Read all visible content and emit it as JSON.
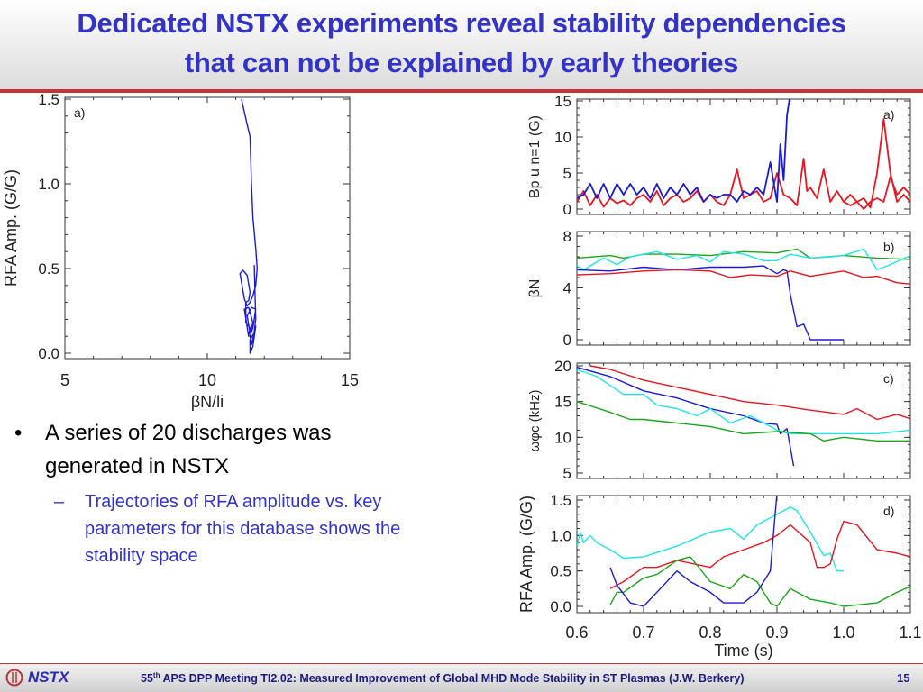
{
  "slide": {
    "title_line1": "Dedicated NSTX experiments reveal stability dependencies",
    "title_line2": "that can not be explained by early theories",
    "bullet": "A series of 20 discharges was generated in NSTX",
    "sub_bullet": "Trajectories of RFA amplitude vs. key parameters for this database shows the stability space",
    "bullet_marker": "•",
    "sub_bullet_marker": "–"
  },
  "footer": {
    "logo_text": "NSTX",
    "meeting_num": "55",
    "meeting_sup": "th",
    "meeting_text": " APS DPP Meeting TI2.02: Measured Improvement of Global MHD Mode Stability in ST Plasmas (J.W. Berkery)",
    "page_number": "15"
  },
  "colors": {
    "title": "#3333c8",
    "accent_rule": "#c0343a",
    "series_blue": "#1a1ad6",
    "series_red": "#e8141e",
    "series_green": "#1aa51a",
    "series_cyan": "#1ee6e6"
  },
  "chart_data": [
    {
      "id": "left",
      "type": "line",
      "panel_label": "a)",
      "xlabel": "βN/li",
      "ylabel": "RFA Amp. (G/G)",
      "xlim": [
        5,
        15
      ],
      "ylim": [
        0,
        1.5
      ],
      "xticks": [
        "5",
        "10",
        "15"
      ],
      "yticks": [
        "0.0",
        "0.5",
        "1.0",
        "1.5"
      ],
      "series": [
        {
          "name": "trajectory",
          "color": "blue",
          "x": [
            11.2,
            11.4,
            11.5,
            11.55,
            11.6,
            11.7,
            11.75,
            11.7,
            11.6,
            11.5,
            11.4,
            11.3,
            11.15,
            11.25,
            11.4,
            11.5,
            11.45,
            11.35,
            11.35,
            11.5,
            11.45,
            11.3,
            11.45,
            11.6,
            11.5,
            11.4,
            11.55,
            11.7,
            11.6,
            11.5,
            11.55,
            11.65,
            11.5,
            11.5,
            11.6,
            11.7,
            11.7,
            11.6,
            11.6,
            11.7,
            11.65
          ],
          "y": [
            1.5,
            1.35,
            1.28,
            1.0,
            0.8,
            0.62,
            0.5,
            0.4,
            0.34,
            0.3,
            0.28,
            0.32,
            0.47,
            0.49,
            0.46,
            0.36,
            0.31,
            0.3,
            0.18,
            0.15,
            0.1,
            0.26,
            0.27,
            0.18,
            0.12,
            0.22,
            0.27,
            0.26,
            0.15,
            0.1,
            0.05,
            0.12,
            0.08,
            0.0,
            0.04,
            0.16,
            0.16,
            0.08,
            0.06,
            0.2,
            0.52
          ]
        }
      ]
    },
    {
      "id": "right-a",
      "type": "line",
      "panel_label": "a)",
      "ylabel": "Bp u n=1 (G)",
      "xlim": [
        0.6,
        1.1
      ],
      "ylim": [
        0,
        15
      ],
      "yticks": [
        "0",
        "5",
        "10",
        "15"
      ],
      "series": [
        {
          "name": "red",
          "color": "red",
          "x": [
            0.6,
            0.61,
            0.62,
            0.63,
            0.64,
            0.65,
            0.66,
            0.67,
            0.68,
            0.69,
            0.7,
            0.71,
            0.72,
            0.73,
            0.74,
            0.75,
            0.76,
            0.77,
            0.78,
            0.79,
            0.8,
            0.81,
            0.82,
            0.83,
            0.84,
            0.85,
            0.86,
            0.87,
            0.88,
            0.89,
            0.9,
            0.91,
            0.92,
            0.93,
            0.94,
            0.945,
            0.95,
            0.96,
            0.97,
            0.98,
            0.99,
            1.0,
            1.01,
            1.02,
            1.03,
            1.04,
            1.05,
            1.06,
            1.07,
            1.08,
            1.09,
            1.1
          ],
          "y": [
            1,
            2.5,
            0.5,
            2,
            0.3,
            1.5,
            0.8,
            1.2,
            0.5,
            1.5,
            2,
            1,
            2.5,
            0.5,
            1.5,
            2,
            1,
            1.5,
            2.5,
            1,
            2,
            1,
            0.5,
            2,
            5.5,
            1.5,
            2,
            2.5,
            1,
            1.5,
            5,
            2,
            1.5,
            0.5,
            7,
            2.5,
            3,
            1.5,
            5.5,
            1,
            2.5,
            1,
            0.5,
            1,
            1.5,
            0.2,
            5,
            12.5,
            5,
            1,
            2,
            1
          ]
        },
        {
          "name": "red2",
          "color": "red",
          "x": [
            1.0,
            1.01,
            1.02,
            1.03,
            1.04,
            1.05,
            1.06,
            1.07,
            1.08,
            1.09,
            1.1
          ],
          "y": [
            1,
            2,
            1,
            0,
            1,
            1.5,
            1,
            4.5,
            2,
            3,
            2
          ]
        },
        {
          "name": "blue",
          "color": "blue",
          "x": [
            0.6,
            0.61,
            0.62,
            0.63,
            0.64,
            0.65,
            0.66,
            0.67,
            0.68,
            0.69,
            0.7,
            0.71,
            0.72,
            0.73,
            0.74,
            0.75,
            0.76,
            0.77,
            0.78,
            0.79,
            0.8,
            0.81,
            0.82,
            0.83,
            0.84,
            0.85,
            0.86,
            0.87,
            0.88,
            0.89,
            0.9,
            0.905,
            0.91,
            0.915,
            0.92
          ],
          "y": [
            1.5,
            2,
            3.5,
            1.5,
            3.5,
            1.5,
            3.5,
            2,
            3.5,
            2,
            3,
            1.5,
            3.5,
            1.5,
            3,
            2,
            3.5,
            2,
            3,
            1,
            2,
            1.5,
            2,
            2,
            1,
            2.5,
            2,
            3,
            2,
            6.5,
            1,
            9,
            4,
            13,
            16
          ]
        }
      ]
    },
    {
      "id": "right-b",
      "type": "line",
      "panel_label": "b)",
      "ylabel": "βN",
      "xlim": [
        0.6,
        1.1
      ],
      "ylim": [
        0,
        8
      ],
      "yticks": [
        "0",
        "4",
        "8"
      ],
      "series": [
        {
          "name": "green",
          "color": "green",
          "x": [
            0.6,
            0.65,
            0.67,
            0.7,
            0.75,
            0.8,
            0.85,
            0.9,
            0.93,
            0.95,
            1.0,
            1.05,
            1.1
          ],
          "y": [
            6.3,
            6.5,
            6.3,
            6.6,
            6.6,
            6.5,
            6.8,
            6.7,
            7.0,
            6.3,
            6.5,
            6.3,
            6.2
          ]
        },
        {
          "name": "cyan",
          "color": "cyan",
          "x": [
            0.6,
            0.61,
            0.64,
            0.66,
            0.68,
            0.72,
            0.75,
            0.78,
            0.8,
            0.82,
            0.85,
            0.88,
            0.9,
            0.92,
            0.95,
            0.98,
            1.0,
            1.03,
            1.05,
            1.07,
            1.1
          ],
          "y": [
            5.7,
            5.4,
            6.3,
            5.8,
            6.4,
            6.8,
            6.2,
            6.5,
            6.0,
            6.8,
            6.6,
            6.1,
            6.1,
            6.6,
            6.3,
            6.4,
            6.5,
            7.0,
            5.4,
            5.8,
            6.5
          ]
        },
        {
          "name": "blue",
          "color": "blue",
          "x": [
            0.6,
            0.65,
            0.7,
            0.75,
            0.8,
            0.85,
            0.88,
            0.9,
            0.91,
            0.915,
            0.92,
            0.93,
            0.94,
            0.95,
            0.96,
            1.0
          ],
          "y": [
            5.4,
            5.3,
            5.6,
            5.4,
            5.6,
            5.6,
            5.7,
            5.1,
            5.4,
            5.3,
            3.5,
            1.0,
            1.2,
            0.0,
            0.0,
            0.0
          ]
        },
        {
          "name": "red",
          "color": "red",
          "x": [
            0.6,
            0.65,
            0.7,
            0.75,
            0.8,
            0.83,
            0.86,
            0.9,
            0.92,
            0.95,
            1.0,
            1.03,
            1.05,
            1.08,
            1.1
          ],
          "y": [
            5.0,
            5.1,
            5.3,
            5.4,
            5.3,
            4.8,
            5.0,
            4.9,
            5.3,
            4.9,
            5.3,
            4.8,
            4.9,
            4.4,
            4.3
          ]
        }
      ]
    },
    {
      "id": "right-c",
      "type": "line",
      "panel_label": "c)",
      "ylabel": "ωφc (kHz)",
      "xlim": [
        0.6,
        1.1
      ],
      "ylim": [
        5,
        20
      ],
      "yticks": [
        "5",
        "10",
        "15",
        "20"
      ],
      "series": [
        {
          "name": "red",
          "color": "red",
          "x": [
            0.62,
            0.65,
            0.7,
            0.75,
            0.8,
            0.85,
            0.9,
            0.95,
            1.0,
            1.02,
            1.05,
            1.08,
            1.1
          ],
          "y": [
            20,
            19.5,
            18,
            17,
            16,
            15,
            14.5,
            13.8,
            13.2,
            14,
            12.5,
            13.2,
            12.6
          ]
        },
        {
          "name": "blue",
          "color": "blue",
          "x": [
            0.6,
            0.65,
            0.7,
            0.75,
            0.8,
            0.85,
            0.88,
            0.9,
            0.905,
            0.915,
            0.925
          ],
          "y": [
            19.8,
            18.5,
            16.5,
            15.5,
            14,
            13,
            12,
            11.8,
            10.5,
            11.2,
            6
          ]
        },
        {
          "name": "cyan",
          "color": "cyan",
          "x": [
            0.6,
            0.63,
            0.67,
            0.7,
            0.72,
            0.75,
            0.78,
            0.8,
            0.83,
            0.86,
            0.88,
            0.9,
            0.92,
            0.95,
            1.0,
            1.05,
            1.1
          ],
          "y": [
            19.5,
            18.5,
            16,
            16,
            14.5,
            14,
            13,
            14,
            12,
            13,
            12,
            11,
            10.5,
            10.5,
            10.5,
            10.5,
            11
          ]
        },
        {
          "name": "green",
          "color": "green",
          "x": [
            0.6,
            0.65,
            0.68,
            0.7,
            0.75,
            0.8,
            0.85,
            0.9,
            0.95,
            0.97,
            1.0,
            1.05,
            1.1
          ],
          "y": [
            15,
            13.5,
            12.5,
            12.5,
            12,
            11.5,
            10.5,
            10.8,
            10.5,
            9.5,
            10,
            9.5,
            9.5
          ]
        }
      ]
    },
    {
      "id": "right-d",
      "type": "line",
      "panel_label": "d)",
      "xlabel": "Time (s)",
      "ylabel": "RFA Amp. (G/G)",
      "xlim": [
        0.6,
        1.1
      ],
      "ylim": [
        0,
        1.5
      ],
      "xticks": [
        "0.6",
        "0.7",
        "0.8",
        "0.9",
        "1.0",
        "1.1"
      ],
      "yticks": [
        "0.0",
        "0.5",
        "1.0",
        "1.5"
      ],
      "series": [
        {
          "name": "cyan",
          "color": "cyan",
          "x": [
            0.6,
            0.605,
            0.61,
            0.62,
            0.63,
            0.65,
            0.67,
            0.7,
            0.75,
            0.8,
            0.83,
            0.85,
            0.87,
            0.9,
            0.92,
            0.93,
            0.95,
            0.97,
            0.98,
            0.99,
            1.0
          ],
          "y": [
            0.85,
            1.05,
            0.9,
            1.0,
            0.9,
            0.8,
            0.68,
            0.7,
            0.85,
            1.05,
            1.1,
            0.95,
            1.15,
            1.3,
            1.4,
            1.35,
            1.05,
            0.72,
            0.75,
            0.5,
            0.5
          ]
        },
        {
          "name": "red",
          "color": "red",
          "x": [
            0.65,
            0.67,
            0.7,
            0.72,
            0.75,
            0.8,
            0.82,
            0.85,
            0.88,
            0.9,
            0.92,
            0.95,
            0.96,
            0.97,
            0.98,
            0.99,
            1.0,
            1.02,
            1.05,
            1.08,
            1.1
          ],
          "y": [
            0.25,
            0.35,
            0.55,
            0.55,
            0.65,
            0.55,
            0.7,
            0.8,
            0.9,
            1.0,
            1.15,
            0.9,
            0.55,
            0.55,
            0.6,
            0.95,
            1.2,
            1.15,
            0.8,
            0.75,
            0.7
          ]
        },
        {
          "name": "green",
          "color": "green",
          "x": [
            0.65,
            0.66,
            0.67,
            0.7,
            0.72,
            0.75,
            0.77,
            0.8,
            0.83,
            0.85,
            0.87,
            0.89,
            0.9,
            0.92,
            0.95,
            0.98,
            1.0,
            1.05,
            1.08,
            1.1
          ],
          "y": [
            0.02,
            0.2,
            0.2,
            0.4,
            0.45,
            0.65,
            0.7,
            0.35,
            0.25,
            0.45,
            0.35,
            0.05,
            0.0,
            0.25,
            0.1,
            0.05,
            0.0,
            0.05,
            0.2,
            0.28
          ]
        },
        {
          "name": "blue",
          "color": "blue",
          "x": [
            0.65,
            0.66,
            0.68,
            0.7,
            0.72,
            0.75,
            0.77,
            0.8,
            0.82,
            0.85,
            0.87,
            0.89,
            0.9
          ],
          "y": [
            0.55,
            0.3,
            0.05,
            0.0,
            0.2,
            0.5,
            0.35,
            0.2,
            0.05,
            0.05,
            0.2,
            0.5,
            1.6
          ]
        }
      ]
    }
  ]
}
